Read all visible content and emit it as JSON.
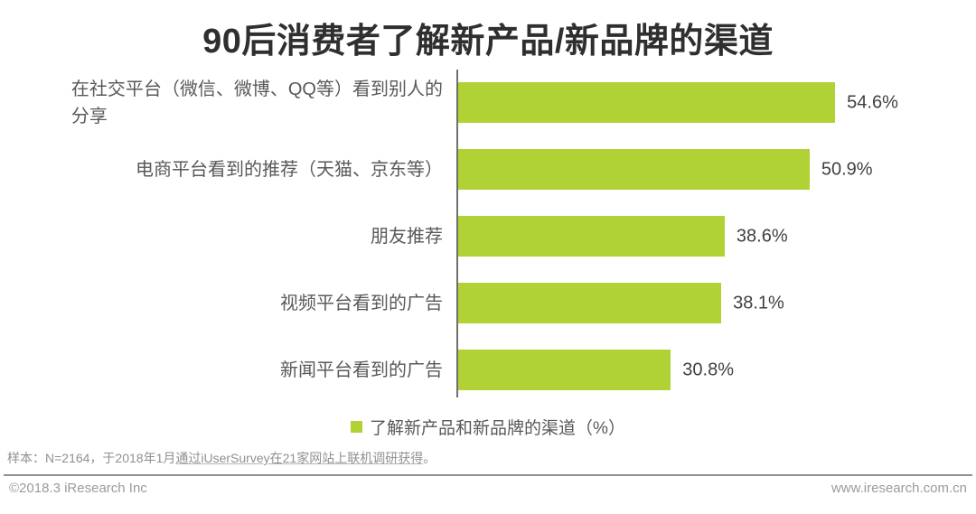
{
  "title": "90后消费者了解新产品/新品牌的渠道",
  "chart_data": {
    "type": "bar",
    "orientation": "horizontal",
    "title": "90后消费者了解新产品/新品牌的渠道",
    "categories": [
      "在社交平台（微信、微博、QQ等）看到别人的分享",
      "电商平台看到的推荐（天猫、京东等）",
      "朋友推荐",
      "视频平台看到的广告",
      "新闻平台看到的广告"
    ],
    "values": [
      54.6,
      50.9,
      38.6,
      38.1,
      30.8
    ],
    "value_labels": [
      "54.6%",
      "50.9%",
      "38.6%",
      "38.1%",
      "30.8%"
    ],
    "legend": "了解新产品和新品牌的渠道（%）",
    "legend_position": "bottom-center",
    "bar_color": "#b1d235",
    "xlim": [
      0,
      60
    ],
    "grid": false,
    "items": [
      {
        "label_lines": [
          "在社交平台（微信、微博、QQ等）看到别人的",
          "分享"
        ],
        "value": 54.6,
        "value_label": "54.6%"
      },
      {
        "label_lines": [
          "电商平台看到的推荐（天猫、京东等）"
        ],
        "value": 50.9,
        "value_label": "50.9%"
      },
      {
        "label_lines": [
          "朋友推荐"
        ],
        "value": 38.6,
        "value_label": "38.6%"
      },
      {
        "label_lines": [
          "视频平台看到的广告"
        ],
        "value": 38.1,
        "value_label": "38.1%"
      },
      {
        "label_lines": [
          "新闻平台看到的广告"
        ],
        "value": 30.8,
        "value_label": "30.8%"
      }
    ]
  },
  "footnote": {
    "prefix": "样本：N=2164，于2018年1月",
    "underlined": "通过iUserSurvey在21家网站上联机调研获得",
    "suffix": "。"
  },
  "footer": {
    "left": "©2018.3 iResearch Inc",
    "right": "www.iresearch.com.cn"
  }
}
